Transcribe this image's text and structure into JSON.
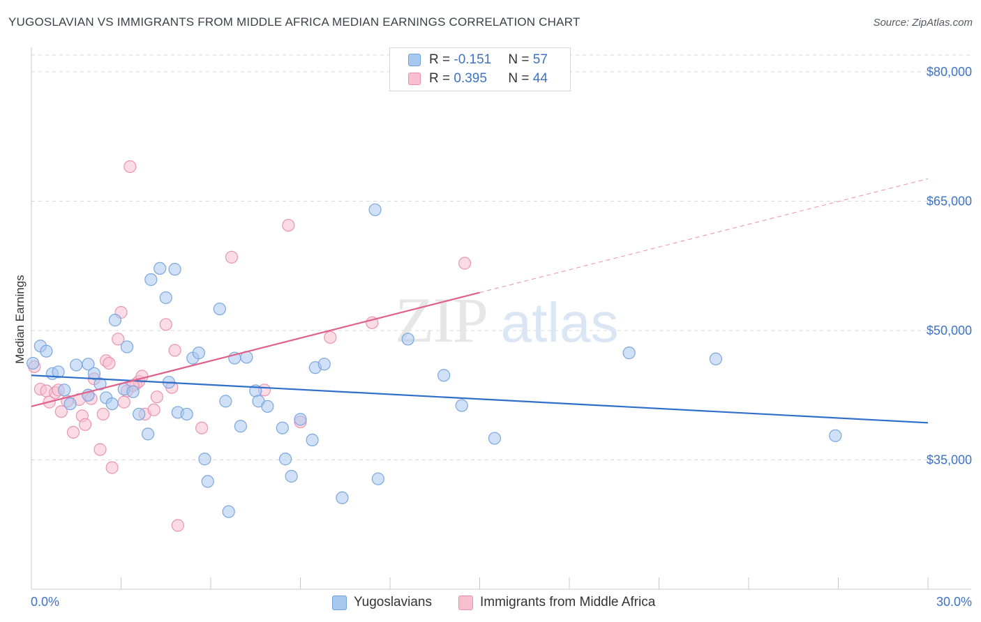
{
  "header": {
    "title": "YUGOSLAVIAN VS IMMIGRANTS FROM MIDDLE AFRICA MEDIAN EARNINGS CORRELATION CHART",
    "source": "Source: ZipAtlas.com"
  },
  "watermark": {
    "zip": "ZIP",
    "atlas": "atlas"
  },
  "legend": {
    "r_label": "R = ",
    "n_label": "N = ",
    "rows": [
      {
        "r": "-0.151",
        "n": "57",
        "color": "#a9c8f0",
        "border": "#6f9fdc"
      },
      {
        "r": "0.395",
        "n": "44",
        "color": "#f8bfd0",
        "border": "#e891ad"
      }
    ]
  },
  "colors": {
    "blue_fill": "#a9c8f0",
    "blue_stroke": "#7aa6df",
    "blue_line": "#2f6fcb",
    "pink_fill": "#f8bfd0",
    "pink_stroke": "#e994b0",
    "pink_line": "#e05f8b",
    "grid": "#d9d9d9",
    "axis_label": "#3d72c4"
  },
  "chart_data": {
    "type": "scatter",
    "title": "YUGOSLAVIAN VS IMMIGRANTS FROM MIDDLE AFRICA MEDIAN EARNINGS CORRELATION CHART",
    "xlabel": "",
    "ylabel": "Median Earnings",
    "xlim": [
      0,
      30
    ],
    "ylim": [
      20000,
      82500
    ],
    "x_tick_labels": [
      "0.0%",
      "30.0%"
    ],
    "y_ticks": [
      35000,
      50000,
      65000,
      80000
    ],
    "y_tick_labels": [
      "$35,000",
      "$50,000",
      "$65,000",
      "$80,000"
    ],
    "grid": "horizontal dashed",
    "legend_placement": "top-center and bottom",
    "series": [
      {
        "name": "Yugoslavians",
        "r": -0.151,
        "n": 57,
        "trend": {
          "x": [
            0,
            30
          ],
          "y": [
            44800,
            39300
          ],
          "dashed_from": null
        },
        "points": [
          [
            0.05,
            46200
          ],
          [
            0.3,
            48200
          ],
          [
            0.5,
            47600
          ],
          [
            0.7,
            45000
          ],
          [
            0.9,
            45200
          ],
          [
            1.1,
            43100
          ],
          [
            1.3,
            41500
          ],
          [
            1.5,
            46000
          ],
          [
            1.9,
            42500
          ],
          [
            1.9,
            46100
          ],
          [
            2.1,
            45000
          ],
          [
            2.3,
            43800
          ],
          [
            2.5,
            42200
          ],
          [
            2.7,
            41500
          ],
          [
            2.8,
            51200
          ],
          [
            3.1,
            43200
          ],
          [
            3.2,
            48100
          ],
          [
            3.4,
            42900
          ],
          [
            3.6,
            40300
          ],
          [
            3.9,
            38000
          ],
          [
            4.0,
            55900
          ],
          [
            4.3,
            57200
          ],
          [
            4.5,
            53800
          ],
          [
            4.6,
            44000
          ],
          [
            4.8,
            57100
          ],
          [
            4.9,
            40500
          ],
          [
            5.2,
            40300
          ],
          [
            5.4,
            46800
          ],
          [
            5.6,
            47400
          ],
          [
            5.8,
            35100
          ],
          [
            5.9,
            32500
          ],
          [
            6.3,
            52500
          ],
          [
            6.5,
            41800
          ],
          [
            6.6,
            29000
          ],
          [
            6.8,
            46800
          ],
          [
            7.0,
            38900
          ],
          [
            7.2,
            46900
          ],
          [
            7.5,
            43000
          ],
          [
            7.6,
            41800
          ],
          [
            7.9,
            41200
          ],
          [
            8.4,
            38700
          ],
          [
            8.5,
            35100
          ],
          [
            8.7,
            33100
          ],
          [
            9.0,
            39700
          ],
          [
            9.4,
            37300
          ],
          [
            9.5,
            45700
          ],
          [
            9.8,
            46100
          ],
          [
            10.4,
            30600
          ],
          [
            11.5,
            64000
          ],
          [
            11.6,
            32800
          ],
          [
            12.6,
            49000
          ],
          [
            13.8,
            44800
          ],
          [
            14.4,
            41300
          ],
          [
            15.5,
            37500
          ],
          [
            20.0,
            47400
          ],
          [
            22.9,
            46700
          ],
          [
            26.9,
            37800
          ]
        ]
      },
      {
        "name": "Immigrants from Middle Africa",
        "r": 0.395,
        "n": 44,
        "trend": {
          "x": [
            0,
            15
          ],
          "y": [
            41200,
            54400
          ],
          "dashed_to_x": 30,
          "dashed_to_y": 67600
        },
        "points": [
          [
            0.1,
            45800
          ],
          [
            0.3,
            43200
          ],
          [
            0.5,
            43000
          ],
          [
            0.6,
            41700
          ],
          [
            0.8,
            42800
          ],
          [
            0.9,
            43100
          ],
          [
            1.0,
            40600
          ],
          [
            1.2,
            41800
          ],
          [
            1.4,
            38200
          ],
          [
            1.6,
            42000
          ],
          [
            1.7,
            40100
          ],
          [
            1.8,
            39100
          ],
          [
            1.9,
            42500
          ],
          [
            2.0,
            42100
          ],
          [
            2.1,
            44400
          ],
          [
            2.3,
            36200
          ],
          [
            2.4,
            40300
          ],
          [
            2.5,
            46500
          ],
          [
            2.6,
            46200
          ],
          [
            2.7,
            34100
          ],
          [
            2.9,
            49000
          ],
          [
            3.0,
            52100
          ],
          [
            3.1,
            41700
          ],
          [
            3.2,
            43000
          ],
          [
            3.3,
            69000
          ],
          [
            3.5,
            43800
          ],
          [
            3.6,
            44100
          ],
          [
            3.7,
            44700
          ],
          [
            3.8,
            40300
          ],
          [
            4.1,
            40800
          ],
          [
            4.2,
            42300
          ],
          [
            4.5,
            50700
          ],
          [
            4.7,
            43400
          ],
          [
            4.8,
            47700
          ],
          [
            4.9,
            27400
          ],
          [
            5.7,
            38700
          ],
          [
            6.7,
            58500
          ],
          [
            7.8,
            43100
          ],
          [
            8.6,
            62200
          ],
          [
            9.0,
            39400
          ],
          [
            10.0,
            49200
          ],
          [
            11.4,
            50900
          ],
          [
            14.5,
            57800
          ],
          [
            3.4,
            43600
          ]
        ]
      }
    ]
  },
  "bottom_legend": [
    {
      "label": "Yugoslavians"
    },
    {
      "label": "Immigrants from Middle Africa"
    }
  ]
}
